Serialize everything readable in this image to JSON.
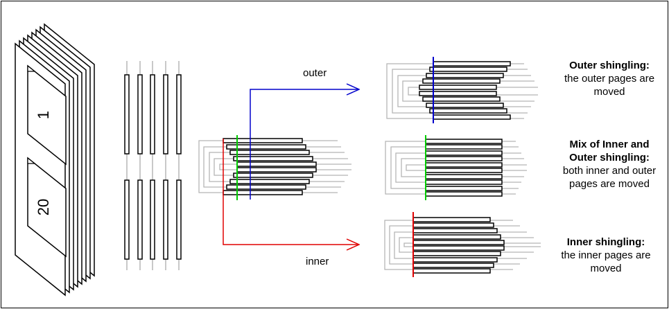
{
  "page_numbers": {
    "first": "1",
    "last": "20"
  },
  "arrows": {
    "outer": {
      "label": "outer",
      "color": "#0000cc"
    },
    "inner": {
      "label": "inner",
      "color": "#e00000"
    }
  },
  "mix_marker_color": "#00cc00",
  "captions": {
    "outer": {
      "title": "Outer shingling:",
      "line1": "the outer pages are",
      "line2": "moved"
    },
    "mix": {
      "title1": "Mix of Inner and",
      "title2": "Outer shingling:",
      "line1": "both inner and outer",
      "line2": "pages are moved"
    },
    "inner": {
      "title": "Inner shingling:",
      "line1": "the inner pages are",
      "line2": "moved"
    }
  }
}
